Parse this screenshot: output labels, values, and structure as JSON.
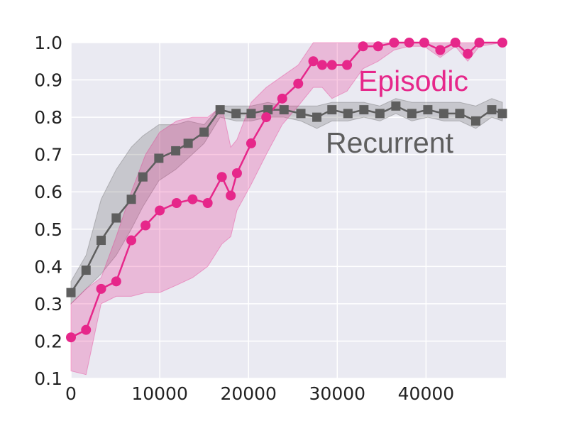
{
  "chart_data": {
    "type": "line",
    "title": "",
    "xlabel": "",
    "ylabel": "",
    "xlim": [
      0,
      49000
    ],
    "ylim": [
      0.1,
      1.0
    ],
    "grid": true,
    "legend": "inline labels",
    "x_ticks": [
      0,
      10000,
      20000,
      30000,
      40000
    ],
    "x_tick_labels": [
      "0",
      "10000",
      "20000",
      "30000",
      "40000"
    ],
    "y_ticks": [
      0.1,
      0.2,
      0.3,
      0.4,
      0.5,
      0.6,
      0.7,
      0.8,
      0.9,
      1.0
    ],
    "y_tick_labels": [
      "0.1",
      "0.2",
      "0.3",
      "0.4",
      "0.5",
      "0.6",
      "0.7",
      "0.8",
      "0.9",
      "1.0"
    ],
    "series": [
      {
        "name": "Recurrent",
        "color": "#5e5e5e",
        "marker": "square",
        "x": [
          0,
          1700,
          3400,
          5100,
          6800,
          8100,
          9900,
          11800,
          13200,
          15000,
          16800,
          18600,
          20300,
          22200,
          24000,
          25900,
          27700,
          29400,
          31200,
          33000,
          34800,
          36600,
          38400,
          40200,
          42000,
          43800,
          45600,
          47400,
          48600
        ],
        "y": [
          0.33,
          0.39,
          0.47,
          0.53,
          0.58,
          0.64,
          0.69,
          0.71,
          0.73,
          0.76,
          0.82,
          0.81,
          0.81,
          0.82,
          0.82,
          0.81,
          0.8,
          0.82,
          0.81,
          0.82,
          0.81,
          0.83,
          0.81,
          0.82,
          0.81,
          0.81,
          0.79,
          0.82,
          0.81
        ],
        "band_upper": [
          0.36,
          0.43,
          0.58,
          0.66,
          0.72,
          0.75,
          0.78,
          0.78,
          0.79,
          0.78,
          0.83,
          0.83,
          0.83,
          0.84,
          0.83,
          0.83,
          0.83,
          0.84,
          0.84,
          0.84,
          0.83,
          0.85,
          0.84,
          0.84,
          0.84,
          0.84,
          0.83,
          0.85,
          0.84
        ],
        "band_lower": [
          0.3,
          0.34,
          0.38,
          0.43,
          0.5,
          0.56,
          0.63,
          0.66,
          0.69,
          0.73,
          0.8,
          0.79,
          0.79,
          0.8,
          0.8,
          0.79,
          0.77,
          0.79,
          0.79,
          0.8,
          0.79,
          0.81,
          0.79,
          0.8,
          0.79,
          0.79,
          0.77,
          0.8,
          0.79
        ]
      },
      {
        "name": "Episodic",
        "color": "#e6278a",
        "marker": "circle",
        "x": [
          0,
          1700,
          3400,
          5100,
          6800,
          8400,
          10000,
          11900,
          13700,
          15400,
          17000,
          18000,
          18700,
          20300,
          22000,
          23800,
          25600,
          27300,
          28300,
          29400,
          31100,
          32900,
          34600,
          36400,
          38100,
          39800,
          41600,
          43300,
          44700,
          46000,
          48600
        ],
        "y": [
          0.21,
          0.23,
          0.34,
          0.36,
          0.47,
          0.51,
          0.55,
          0.57,
          0.58,
          0.57,
          0.64,
          0.59,
          0.65,
          0.73,
          0.8,
          0.85,
          0.89,
          0.95,
          0.94,
          0.94,
          0.94,
          0.99,
          0.99,
          1.0,
          1.0,
          1.0,
          0.98,
          1.0,
          0.97,
          1.0,
          1.0
        ],
        "band_upper": [
          0.3,
          0.34,
          0.37,
          0.48,
          0.6,
          0.7,
          0.76,
          0.79,
          0.8,
          0.8,
          0.83,
          0.72,
          0.74,
          0.84,
          0.88,
          0.91,
          0.94,
          1.0,
          1.0,
          1.0,
          1.0,
          1.0,
          1.0,
          1.0,
          1.0,
          1.0,
          1.0,
          1.0,
          1.0,
          1.0,
          1.0
        ],
        "band_lower": [
          0.12,
          0.11,
          0.3,
          0.32,
          0.32,
          0.33,
          0.33,
          0.35,
          0.37,
          0.4,
          0.46,
          0.48,
          0.55,
          0.62,
          0.7,
          0.78,
          0.83,
          0.88,
          0.88,
          0.85,
          0.87,
          0.93,
          0.95,
          0.98,
          0.99,
          0.99,
          0.96,
          0.99,
          0.95,
          0.99,
          1.0
        ]
      }
    ]
  },
  "labels": {
    "episodic": "Episodic",
    "recurrent": "Recurrent"
  },
  "colors": {
    "plot_background": "#eaeaf2",
    "grid": "#ffffff",
    "episodic": "#e6278a",
    "recurrent": "#5e5e5e"
  }
}
